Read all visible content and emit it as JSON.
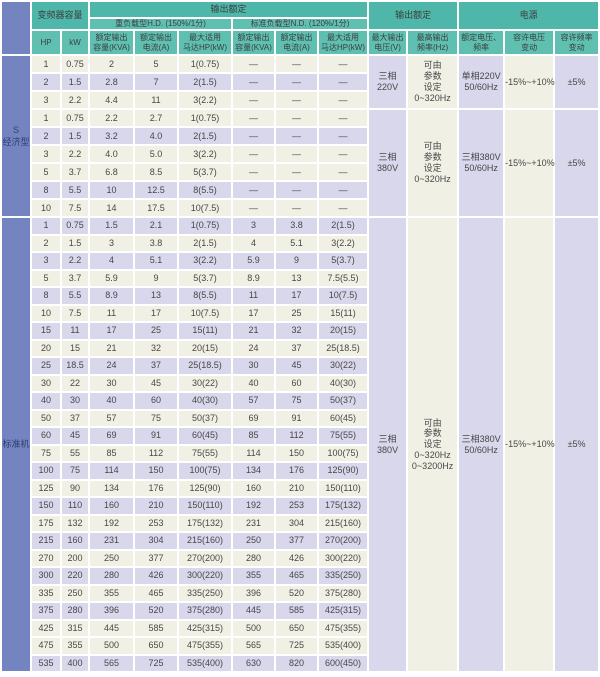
{
  "colors": {
    "teal_dark": "#4eb7a9",
    "teal_light": "#5fc0b2",
    "blue": "#7384c1",
    "cream": "#f1f0e4",
    "lavender": "#d9d7ec",
    "label_text": "#2f3f70",
    "grid": "#ffffff"
  },
  "table": {
    "header": {
      "capacity_group": "变频器容量",
      "output_rating_group": "输出额定",
      "hd_group": "重负载型H.D. (150%/1分)",
      "nd_group": "标准负载型N.D. (120%/1分)",
      "output_rating2_group": "输出额定",
      "power_group": "电源",
      "cols": {
        "hp": "HP",
        "kw": "kW",
        "kva": "额定输出\n容量(KVA)",
        "amp": "额定输出\n电流(A)",
        "motor": "最大适用\n马达HP(kW)",
        "max_v": "最大输出\n电压(V)",
        "max_f": "最高输出\n频率(Hz)",
        "rated_vf": "额定电压、\n频率",
        "v_tol": "容许电压\n变动",
        "f_tol": "容许频率\n变动"
      }
    },
    "sections": [
      {
        "cls": "s1",
        "label": "S\n经济型",
        "bands": [
          "c",
          "l",
          "c",
          "c",
          "l",
          "c",
          "c",
          "l",
          "c"
        ],
        "rows": [
          [
            "1",
            "0.75",
            "2",
            "5",
            "1(0.75)",
            "—",
            "—",
            "—"
          ],
          [
            "2",
            "1.5",
            "2.8",
            "7",
            "2(1.5)",
            "—",
            "—",
            "—"
          ],
          [
            "3",
            "2.2",
            "4.4",
            "11",
            "3(2.2)",
            "—",
            "—",
            "—"
          ],
          [
            "1",
            "0.75",
            "2.2",
            "2.7",
            "1(0.75)",
            "—",
            "—",
            "—"
          ],
          [
            "2",
            "1.5",
            "3.2",
            "4.0",
            "2(1.5)",
            "—",
            "—",
            "—"
          ],
          [
            "3",
            "2.2",
            "4.0",
            "5.0",
            "3(2.2)",
            "—",
            "—",
            "—"
          ],
          [
            "5",
            "3.7",
            "6.8",
            "8.5",
            "5(3.7)",
            "—",
            "—",
            "—"
          ],
          [
            "8",
            "5.5",
            "10",
            "12.5",
            "8(5.5)",
            "—",
            "—",
            "—"
          ],
          [
            "10",
            "7.5",
            "14",
            "17.5",
            "10(7.5)",
            "—",
            "—",
            "—"
          ]
        ],
        "blocks": [
          {
            "rows": 3,
            "voltage": "三相\n220V",
            "freq": "可由\n参数\n设定\n0~320Hz",
            "supply": "单相220V\n50/60Hz",
            "v_tol": "-15%~+10%",
            "f_tol": "±5%"
          },
          {
            "rows": 6,
            "voltage": "三相\n380V",
            "freq": "可由\n参数\n设定\n0~320Hz",
            "supply": "三相380V\n50/60Hz",
            "v_tol": "-15%~+10%",
            "f_tol": "±5%"
          }
        ]
      },
      {
        "cls": "s2",
        "label": "标准机",
        "bands": [
          "l",
          "c",
          "l",
          "c",
          "l",
          "c",
          "l",
          "c",
          "l",
          "c",
          "l",
          "c",
          "l",
          "c",
          "l",
          "c",
          "l",
          "c",
          "l",
          "c",
          "l",
          "c",
          "l",
          "c",
          "c",
          "l"
        ],
        "rows": [
          [
            "1",
            "0.75",
            "1.5",
            "2.1",
            "1(0.75)",
            "3",
            "3.8",
            "2(1.5)"
          ],
          [
            "2",
            "1.5",
            "3",
            "3.8",
            "2(1.5)",
            "4",
            "5.1",
            "3(2.2)"
          ],
          [
            "3",
            "2.2",
            "4",
            "5.1",
            "3(2.2)",
            "5.9",
            "9",
            "5(3.7)"
          ],
          [
            "5",
            "3.7",
            "5.9",
            "9",
            "5(3.7)",
            "8.9",
            "13",
            "7.5(5.5)"
          ],
          [
            "8",
            "5.5",
            "8.9",
            "13",
            "8(5.5)",
            "11",
            "17",
            "10(7.5)"
          ],
          [
            "10",
            "7.5",
            "11",
            "17",
            "10(7.5)",
            "17",
            "25",
            "15(11)"
          ],
          [
            "15",
            "11",
            "17",
            "25",
            "15(11)",
            "21",
            "32",
            "20(15)"
          ],
          [
            "20",
            "15",
            "21",
            "32",
            "20(15)",
            "24",
            "37",
            "25(18.5)"
          ],
          [
            "25",
            "18.5",
            "24",
            "37",
            "25(18.5)",
            "30",
            "45",
            "30(22)"
          ],
          [
            "30",
            "22",
            "30",
            "45",
            "30(22)",
            "40",
            "60",
            "40(30)"
          ],
          [
            "40",
            "30",
            "40",
            "60",
            "40(30)",
            "57",
            "75",
            "50(37)"
          ],
          [
            "50",
            "37",
            "57",
            "75",
            "50(37)",
            "69",
            "91",
            "60(45)"
          ],
          [
            "60",
            "45",
            "69",
            "91",
            "60(45)",
            "85",
            "112",
            "75(55)"
          ],
          [
            "75",
            "55",
            "85",
            "112",
            "75(55)",
            "114",
            "150",
            "100(75)"
          ],
          [
            "100",
            "75",
            "114",
            "150",
            "100(75)",
            "134",
            "176",
            "125(90)"
          ],
          [
            "125",
            "90",
            "134",
            "176",
            "125(90)",
            "160",
            "210",
            "150(110)"
          ],
          [
            "150",
            "110",
            "160",
            "210",
            "150(110)",
            "192",
            "253",
            "175(132)"
          ],
          [
            "175",
            "132",
            "192",
            "253",
            "175(132)",
            "231",
            "304",
            "215(160)"
          ],
          [
            "215",
            "160",
            "231",
            "304",
            "215(160)",
            "250",
            "377",
            "270(200)"
          ],
          [
            "270",
            "200",
            "250",
            "377",
            "270(200)",
            "280",
            "426",
            "300(220)"
          ],
          [
            "300",
            "220",
            "280",
            "426",
            "300(220)",
            "355",
            "465",
            "335(250)"
          ],
          [
            "335",
            "250",
            "355",
            "465",
            "335(250)",
            "396",
            "520",
            "375(280)"
          ],
          [
            "375",
            "280",
            "396",
            "520",
            "375(280)",
            "445",
            "585",
            "425(315)"
          ],
          [
            "425",
            "315",
            "445",
            "585",
            "425(315)",
            "500",
            "650",
            "475(355)"
          ],
          [
            "475",
            "355",
            "500",
            "650",
            "475(355)",
            "565",
            "725",
            "535(400)"
          ],
          [
            "535",
            "400",
            "565",
            "725",
            "535(400)",
            "630",
            "820",
            "600(450)"
          ]
        ],
        "blocks": [
          {
            "rows": 26,
            "voltage": "三相\n380V",
            "freq": "可由\n参数\n设定\n0~320Hz\n0~3200Hz",
            "supply": "三相380V\n50/60Hz",
            "v_tol": "-15%~+10%",
            "f_tol": "±5%"
          }
        ]
      }
    ]
  }
}
